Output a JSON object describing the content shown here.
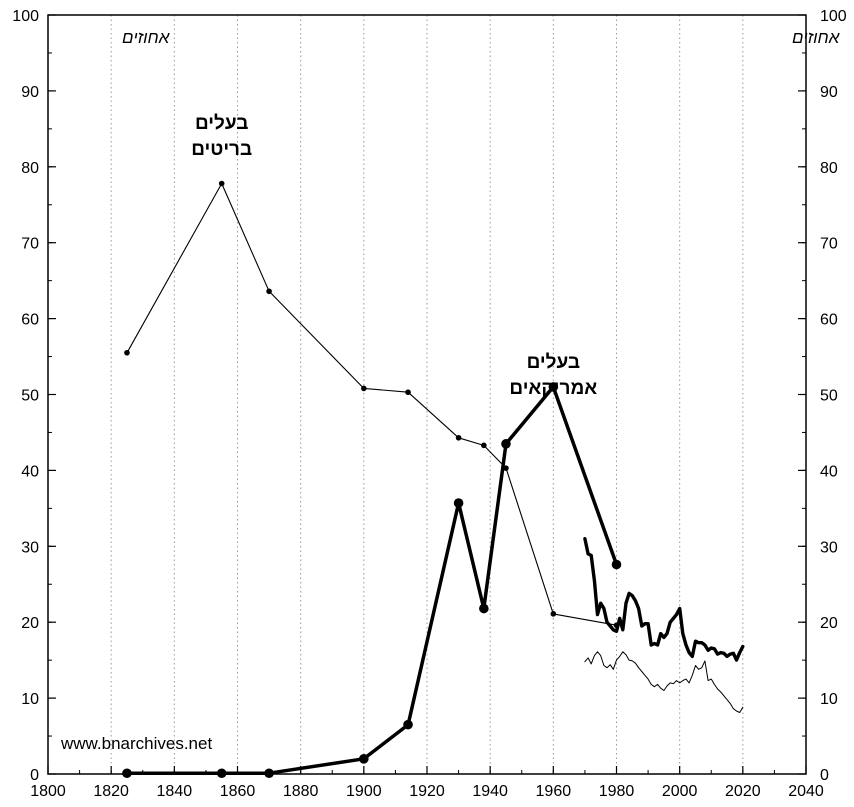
{
  "chart_data": {
    "type": "line",
    "xlim": [
      1800,
      2040
    ],
    "ylim": [
      0,
      100
    ],
    "x_ticks": [
      1800,
      1820,
      1840,
      1860,
      1880,
      1900,
      1920,
      1940,
      1960,
      1980,
      2000,
      2020,
      2040
    ],
    "y_ticks": [
      0,
      10,
      20,
      30,
      40,
      50,
      60,
      70,
      80,
      90,
      100
    ],
    "grid": "vertical-dotted",
    "y_unit_left": "אחוזים",
    "y_unit_right": "אחוזים",
    "source_note": "www.bnarchives.net",
    "series": [
      {
        "name": "בעלים בריטים",
        "label_lines": [
          "בעלים",
          "בריטים"
        ],
        "label_at": [
          1855,
          85
        ],
        "style": "thin",
        "points": [
          [
            1825,
            55.5
          ],
          [
            1855,
            77.8
          ],
          [
            1870,
            63.6
          ],
          [
            1900,
            50.8
          ],
          [
            1914,
            50.3
          ],
          [
            1930,
            44.3
          ],
          [
            1938,
            43.3
          ],
          [
            1945,
            40.3
          ],
          [
            1960,
            21.1
          ],
          [
            1980,
            19.6
          ]
        ]
      },
      {
        "name": "בעלים אמריקאים",
        "label_lines": [
          "בעלים",
          "אמריקאים"
        ],
        "label_at": [
          1960,
          53.5
        ],
        "style": "thick",
        "points": [
          [
            1825,
            0.1
          ],
          [
            1855,
            0.1
          ],
          [
            1870,
            0.1
          ],
          [
            1900,
            2.0
          ],
          [
            1914,
            6.5
          ],
          [
            1930,
            35.7
          ],
          [
            1938,
            21.8
          ],
          [
            1945,
            43.5
          ],
          [
            1960,
            51.0
          ],
          [
            1980,
            27.6
          ]
        ]
      },
      {
        "name": "",
        "style": "thick-nomarker",
        "points": [
          [
            1970,
            31.0
          ],
          [
            1971,
            29.0
          ],
          [
            1972,
            28.8
          ],
          [
            1973,
            25.5
          ],
          [
            1974,
            21.0
          ],
          [
            1975,
            22.5
          ],
          [
            1976,
            21.8
          ],
          [
            1977,
            20.0
          ],
          [
            1978,
            19.5
          ],
          [
            1979,
            19.0
          ],
          [
            1980,
            18.8
          ],
          [
            1981,
            20.5
          ],
          [
            1982,
            19.0
          ],
          [
            1983,
            22.5
          ],
          [
            1984,
            23.8
          ],
          [
            1985,
            23.5
          ],
          [
            1986,
            22.8
          ],
          [
            1987,
            21.8
          ],
          [
            1988,
            19.5
          ],
          [
            1989,
            19.8
          ],
          [
            1990,
            19.8
          ],
          [
            1991,
            17.0
          ],
          [
            1992,
            17.2
          ],
          [
            1993,
            17.0
          ],
          [
            1994,
            18.5
          ],
          [
            1995,
            18.0
          ],
          [
            1996,
            18.5
          ],
          [
            1997,
            20.0
          ],
          [
            1998,
            20.5
          ],
          [
            1999,
            21.0
          ],
          [
            2000,
            21.8
          ],
          [
            2001,
            18.5
          ],
          [
            2002,
            17.0
          ],
          [
            2003,
            16.0
          ],
          [
            2004,
            15.5
          ],
          [
            2005,
            17.5
          ],
          [
            2006,
            17.3
          ],
          [
            2007,
            17.3
          ],
          [
            2008,
            17.0
          ],
          [
            2009,
            16.3
          ],
          [
            2010,
            16.6
          ],
          [
            2011,
            16.5
          ],
          [
            2012,
            15.8
          ],
          [
            2013,
            16.0
          ],
          [
            2014,
            15.9
          ],
          [
            2015,
            15.5
          ],
          [
            2016,
            15.8
          ],
          [
            2017,
            15.9
          ],
          [
            2018,
            15.0
          ],
          [
            2019,
            16.0
          ],
          [
            2020,
            16.8
          ]
        ]
      },
      {
        "name": "",
        "style": "thin-nomarker",
        "points": [
          [
            1970,
            14.8
          ],
          [
            1971,
            15.3
          ],
          [
            1972,
            14.5
          ],
          [
            1973,
            15.6
          ],
          [
            1974,
            16.1
          ],
          [
            1975,
            15.6
          ],
          [
            1976,
            14.3
          ],
          [
            1977,
            14.0
          ],
          [
            1978,
            14.4
          ],
          [
            1979,
            13.8
          ],
          [
            1980,
            15.0
          ],
          [
            1981,
            15.5
          ],
          [
            1982,
            16.1
          ],
          [
            1983,
            15.7
          ],
          [
            1984,
            15.0
          ],
          [
            1985,
            14.9
          ],
          [
            1986,
            14.6
          ],
          [
            1987,
            14.0
          ],
          [
            1988,
            13.5
          ],
          [
            1989,
            13.0
          ],
          [
            1990,
            12.5
          ],
          [
            1991,
            11.8
          ],
          [
            1992,
            11.5
          ],
          [
            1993,
            11.8
          ],
          [
            1994,
            11.3
          ],
          [
            1995,
            11.0
          ],
          [
            1996,
            11.6
          ],
          [
            1997,
            12.0
          ],
          [
            1998,
            11.9
          ],
          [
            1999,
            12.3
          ],
          [
            2000,
            12.0
          ],
          [
            2001,
            12.3
          ],
          [
            2002,
            12.5
          ],
          [
            2003,
            12.0
          ],
          [
            2004,
            13.0
          ],
          [
            2005,
            14.3
          ],
          [
            2006,
            13.8
          ],
          [
            2007,
            14.0
          ],
          [
            2008,
            14.9
          ],
          [
            2009,
            12.3
          ],
          [
            2010,
            12.5
          ],
          [
            2011,
            11.8
          ],
          [
            2012,
            11.2
          ],
          [
            2013,
            10.8
          ],
          [
            2014,
            10.3
          ],
          [
            2015,
            9.8
          ],
          [
            2016,
            9.3
          ],
          [
            2017,
            8.6
          ],
          [
            2018,
            8.3
          ],
          [
            2019,
            8.1
          ],
          [
            2020,
            8.8
          ]
        ]
      }
    ]
  }
}
